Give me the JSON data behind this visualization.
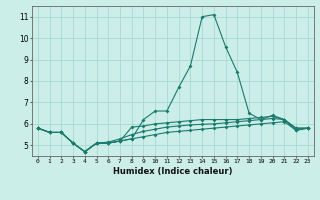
{
  "xlabel": "Humidex (Indice chaleur)",
  "bg_color": "#cceee8",
  "grid_color": "#aad8d2",
  "line_color": "#1a7a6e",
  "xlim": [
    -0.5,
    23.5
  ],
  "ylim": [
    4.5,
    11.5
  ],
  "yticks": [
    5,
    6,
    7,
    8,
    9,
    10,
    11
  ],
  "xticks": [
    0,
    1,
    2,
    3,
    4,
    5,
    6,
    7,
    8,
    9,
    10,
    11,
    12,
    13,
    14,
    15,
    16,
    17,
    18,
    19,
    20,
    21,
    22,
    23
  ],
  "series1": [
    5.8,
    5.6,
    5.6,
    5.1,
    4.7,
    5.1,
    5.1,
    5.2,
    5.3,
    6.2,
    6.6,
    6.6,
    7.7,
    8.7,
    11.0,
    11.1,
    9.6,
    8.4,
    6.5,
    6.2,
    6.4,
    6.2,
    5.7,
    5.8
  ],
  "series2": [
    5.8,
    5.6,
    5.6,
    5.1,
    4.7,
    5.1,
    5.1,
    5.2,
    5.85,
    5.9,
    6.0,
    6.05,
    6.1,
    6.15,
    6.2,
    6.2,
    6.2,
    6.2,
    6.25,
    6.3,
    6.35,
    6.2,
    5.8,
    5.8
  ],
  "series3": [
    5.8,
    5.6,
    5.6,
    5.1,
    4.7,
    5.1,
    5.15,
    5.3,
    5.5,
    5.65,
    5.75,
    5.85,
    5.9,
    5.95,
    5.98,
    6.0,
    6.05,
    6.1,
    6.15,
    6.2,
    6.25,
    6.2,
    5.8,
    5.8
  ],
  "series4": [
    5.8,
    5.6,
    5.6,
    5.1,
    4.7,
    5.1,
    5.1,
    5.2,
    5.3,
    5.4,
    5.5,
    5.6,
    5.65,
    5.7,
    5.75,
    5.8,
    5.85,
    5.9,
    5.95,
    6.0,
    6.05,
    6.1,
    5.7,
    5.8
  ]
}
